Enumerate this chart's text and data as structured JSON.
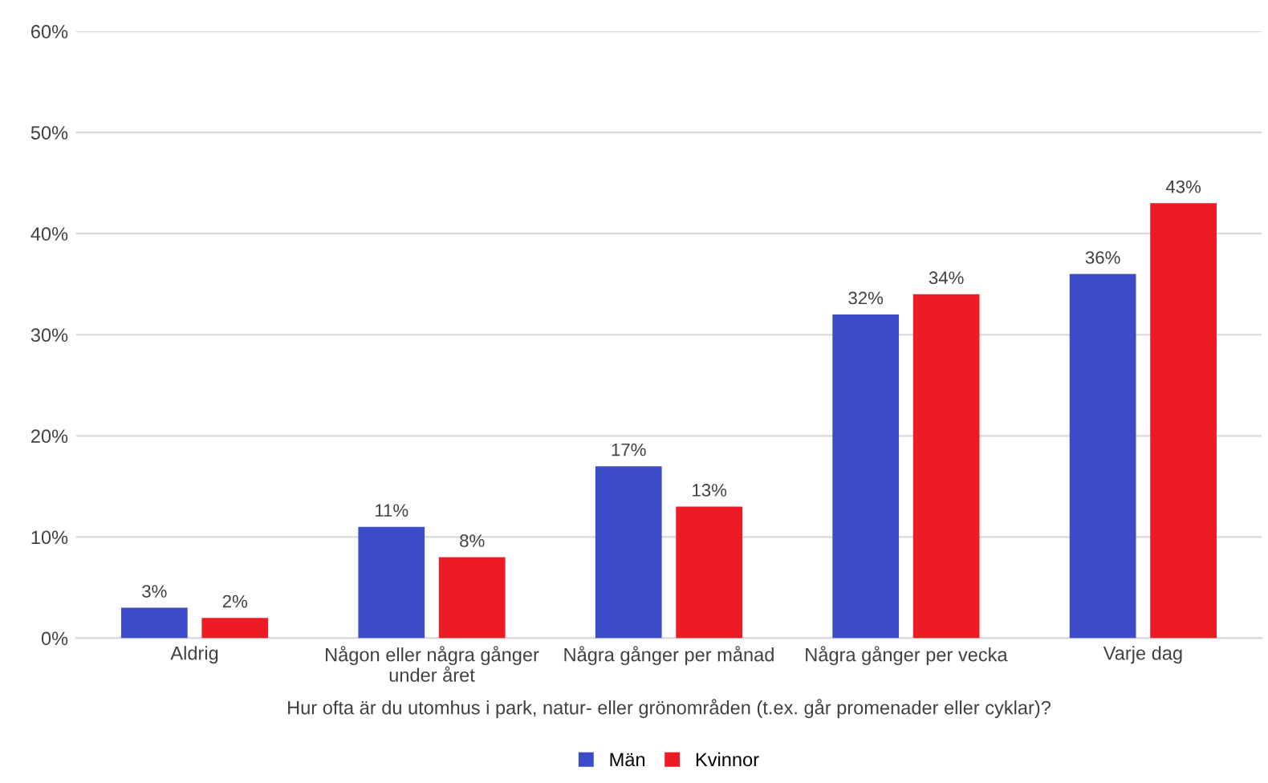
{
  "chart_data": {
    "type": "bar",
    "xlabel": "Hur ofta är du utomhus i park, natur- eller grönområden (t.ex. går promenader eller cyklar)?",
    "categories": [
      "Aldrig",
      "Någon eller några gånger\nunder året",
      "Några gånger per månad",
      "Några gånger per vecka",
      "Varje dag"
    ],
    "series": [
      {
        "name": "Män",
        "color": "#3c4bc8",
        "values": [
          3,
          11,
          17,
          32,
          36
        ],
        "value_labels": [
          "3%",
          "11%",
          "17%",
          "32%",
          "36%"
        ]
      },
      {
        "name": "Kvinnor",
        "color": "#ed1c24",
        "values": [
          2,
          8,
          13,
          34,
          43
        ],
        "value_labels": [
          "2%",
          "8%",
          "13%",
          "34%",
          "43%"
        ]
      }
    ],
    "ylim": [
      0,
      60
    ],
    "yticks": [
      {
        "value": 0,
        "label": "0%"
      },
      {
        "value": 10,
        "label": "10%"
      },
      {
        "value": 20,
        "label": "20%"
      },
      {
        "value": 30,
        "label": "30%"
      },
      {
        "value": 40,
        "label": "40%"
      },
      {
        "value": 50,
        "label": "50%"
      },
      {
        "value": 60,
        "label": "60%"
      }
    ],
    "grid": "y",
    "legend": "bottom"
  }
}
